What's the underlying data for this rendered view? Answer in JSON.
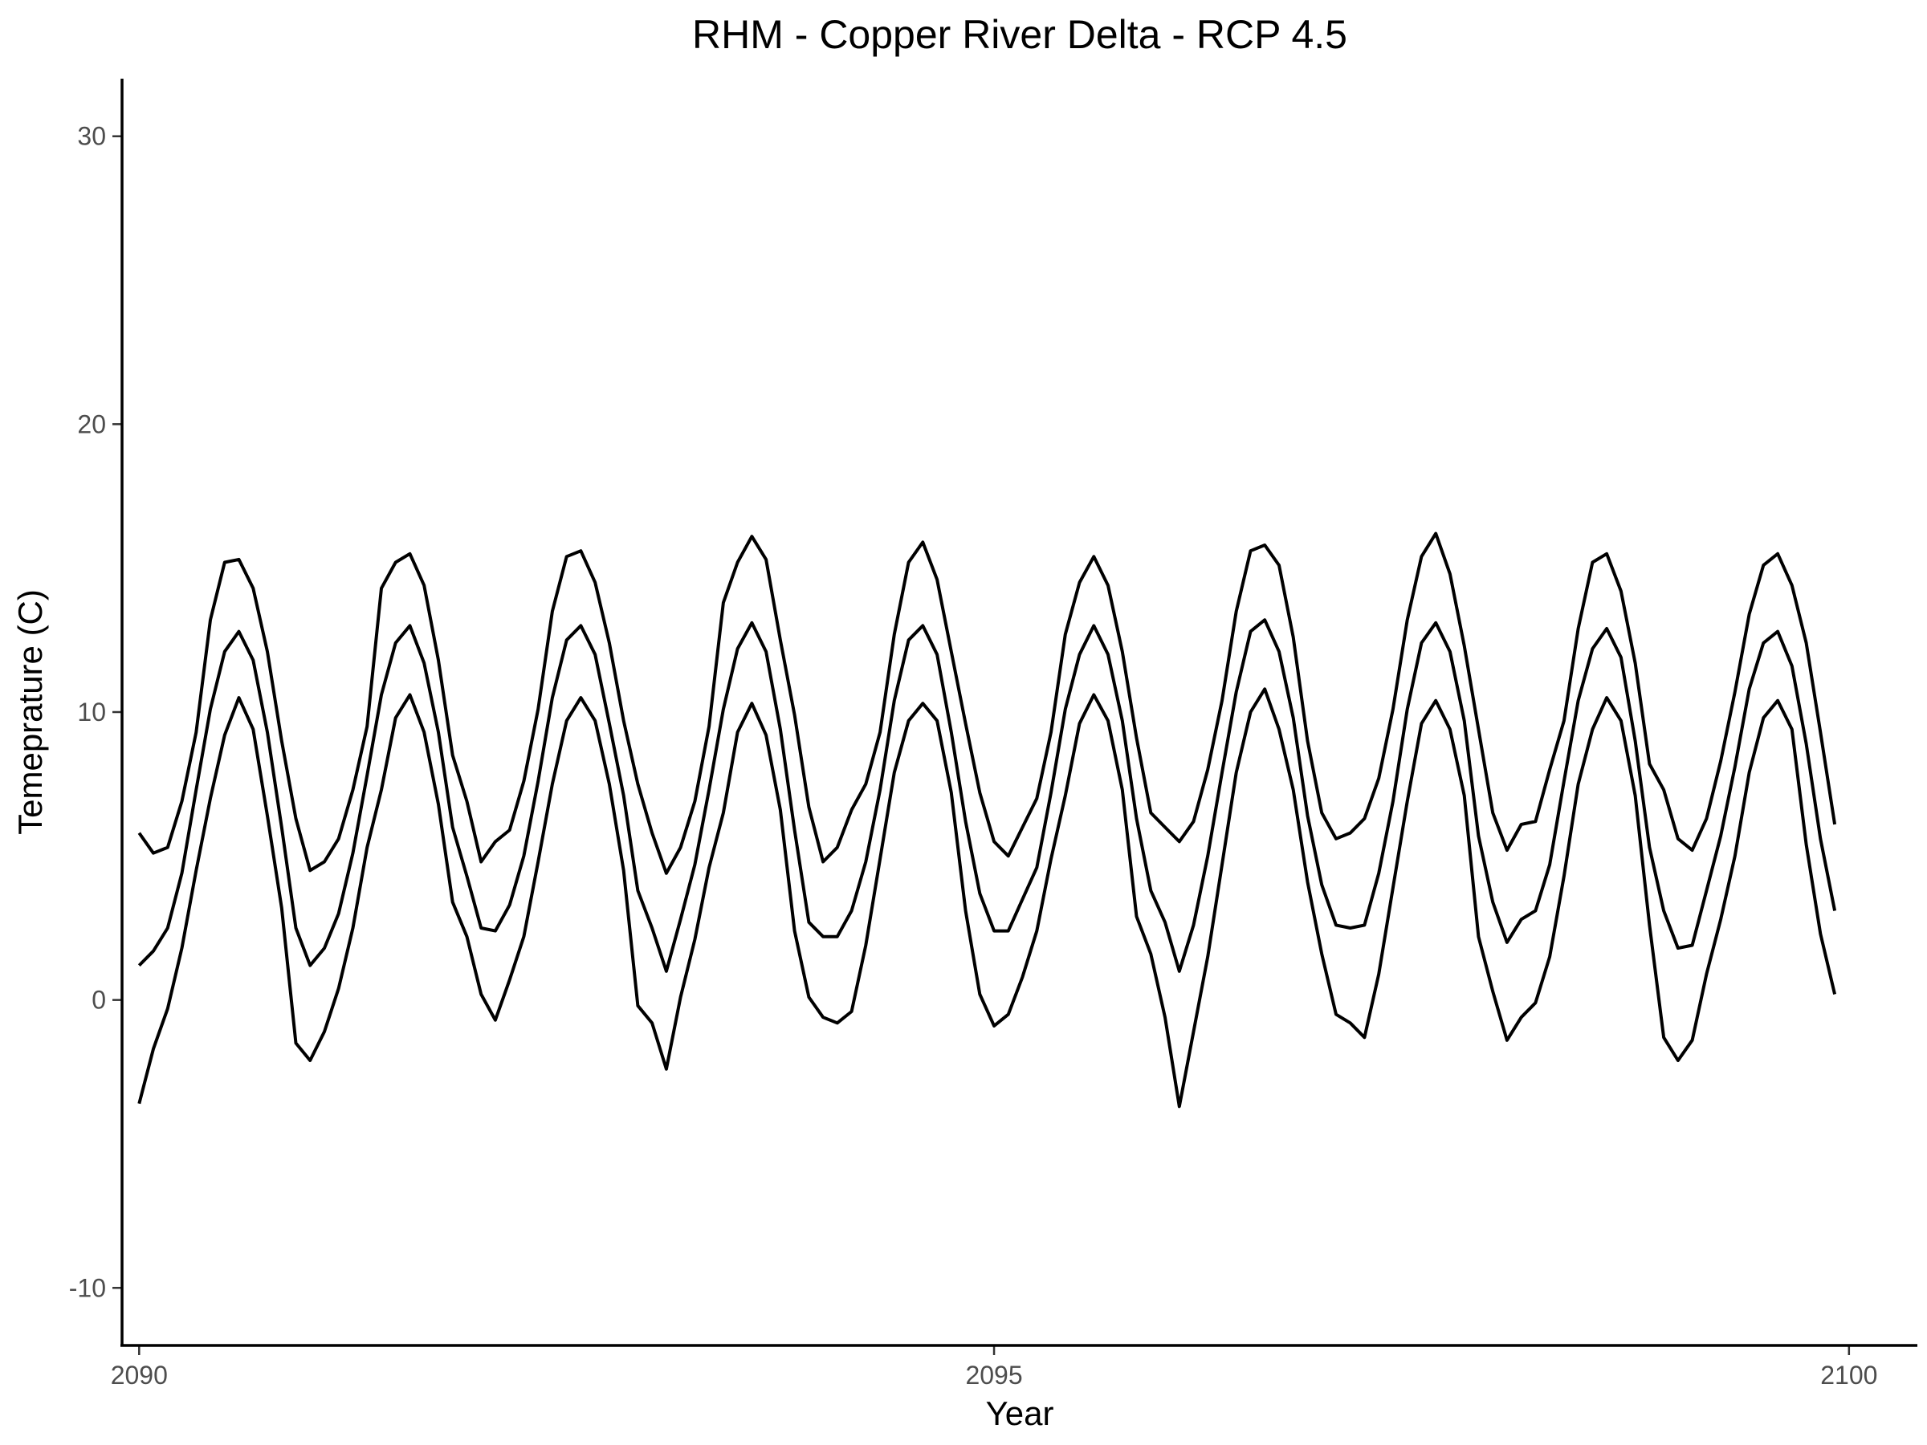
{
  "chart_data": {
    "type": "line",
    "title": "RHM - Copper River Delta - RCP 4.5",
    "xlabel": "Year",
    "ylabel": "Temeprature (C)",
    "xlim": [
      2089.9,
      2100.4
    ],
    "ylim": [
      -12,
      32
    ],
    "xticks": [
      2090,
      2095,
      2100
    ],
    "yticks": [
      -10,
      0,
      10,
      20,
      30
    ],
    "grid": false,
    "legend": "none",
    "line_color": "#000000",
    "x_start": 2090,
    "x_step": 0.083333,
    "series": [
      {
        "values": [
          5.8,
          5.1,
          5.3,
          6.9,
          9.3,
          13.2,
          15.2,
          15.3,
          14.3,
          12.1,
          9.0,
          6.3,
          4.5,
          4.8,
          5.6,
          7.3,
          9.5,
          14.3,
          15.2,
          15.5,
          14.4,
          11.8,
          8.5,
          6.9,
          4.8,
          5.5,
          5.9,
          7.6,
          10.1,
          13.5,
          15.4,
          15.6,
          14.5,
          12.4,
          9.7,
          7.5,
          5.8,
          4.4,
          5.3,
          6.9,
          9.5,
          13.8,
          15.2,
          16.1,
          15.3,
          12.5,
          9.9,
          6.7,
          4.8,
          5.3,
          6.6,
          7.5,
          9.3,
          12.7,
          15.2,
          15.9,
          14.6,
          12.1,
          9.6,
          7.2,
          5.5,
          5.0,
          6.0,
          7.0,
          9.3,
          12.7,
          14.5,
          15.4,
          14.4,
          12.1,
          9.1,
          6.5,
          6.0,
          5.5,
          6.2,
          8.0,
          10.4,
          13.5,
          15.6,
          15.8,
          15.1,
          12.6,
          9.0,
          6.5,
          5.6,
          5.8,
          6.3,
          7.7,
          10.1,
          13.2,
          15.4,
          16.2,
          14.8,
          12.3,
          9.4,
          6.5,
          5.2,
          6.1,
          6.2,
          8.0,
          9.7,
          12.9,
          15.2,
          15.5,
          14.2,
          11.7,
          8.2,
          7.3,
          5.6,
          5.2,
          6.3,
          8.3,
          10.7,
          13.4,
          15.1,
          15.5,
          14.4,
          12.4,
          9.3,
          6.1
        ]
      },
      {
        "values": [
          1.2,
          1.7,
          2.5,
          4.4,
          7.3,
          10.1,
          12.1,
          12.8,
          11.8,
          9.3,
          6.0,
          2.5,
          1.2,
          1.8,
          3.0,
          5.1,
          7.8,
          10.6,
          12.4,
          13.0,
          11.7,
          9.3,
          6.0,
          4.3,
          2.5,
          2.4,
          3.3,
          5.0,
          7.6,
          10.5,
          12.5,
          13.0,
          12.0,
          9.6,
          7.1,
          3.8,
          2.5,
          1.0,
          2.8,
          4.7,
          7.3,
          10.1,
          12.2,
          13.1,
          12.1,
          9.4,
          5.9,
          2.7,
          2.2,
          2.2,
          3.1,
          4.8,
          7.3,
          10.4,
          12.5,
          13.0,
          12.0,
          9.3,
          6.2,
          3.7,
          2.4,
          2.4,
          3.5,
          4.6,
          7.2,
          10.1,
          12.0,
          13.0,
          12.0,
          9.7,
          6.3,
          3.8,
          2.7,
          1.0,
          2.6,
          5.0,
          7.9,
          10.7,
          12.8,
          13.2,
          12.1,
          9.8,
          6.4,
          4.0,
          2.6,
          2.5,
          2.6,
          4.4,
          6.9,
          10.1,
          12.4,
          13.1,
          12.1,
          9.7,
          5.7,
          3.4,
          2.0,
          2.8,
          3.1,
          4.7,
          7.6,
          10.4,
          12.2,
          12.9,
          11.9,
          9.0,
          5.3,
          3.1,
          1.8,
          1.9,
          3.8,
          5.7,
          8.1,
          10.8,
          12.4,
          12.8,
          11.6,
          8.9,
          5.6,
          3.1
        ]
      },
      {
        "values": [
          -3.6,
          -1.7,
          -0.3,
          1.8,
          4.5,
          7.0,
          9.2,
          10.5,
          9.4,
          6.4,
          3.2,
          -1.5,
          -2.1,
          -1.1,
          0.4,
          2.5,
          5.3,
          7.3,
          9.8,
          10.6,
          9.3,
          6.8,
          3.4,
          2.2,
          0.2,
          -0.7,
          0.7,
          2.2,
          4.8,
          7.5,
          9.7,
          10.5,
          9.7,
          7.5,
          4.5,
          -0.2,
          -0.8,
          -2.4,
          0.1,
          2.1,
          4.6,
          6.5,
          9.3,
          10.3,
          9.2,
          6.6,
          2.4,
          0.1,
          -0.6,
          -0.8,
          -0.4,
          1.9,
          4.9,
          7.9,
          9.7,
          10.3,
          9.7,
          7.2,
          3.1,
          0.2,
          -0.9,
          -0.5,
          0.8,
          2.4,
          4.9,
          7.1,
          9.6,
          10.6,
          9.7,
          7.3,
          2.9,
          1.6,
          -0.6,
          -3.7,
          -1.1,
          1.5,
          4.7,
          7.9,
          10.0,
          10.8,
          9.4,
          7.3,
          4.1,
          1.6,
          -0.5,
          -0.8,
          -1.3,
          0.9,
          3.9,
          6.9,
          9.6,
          10.4,
          9.4,
          7.1,
          2.2,
          0.3,
          -1.4,
          -0.6,
          -0.1,
          1.5,
          4.3,
          7.5,
          9.4,
          10.5,
          9.7,
          7.1,
          2.6,
          -1.3,
          -2.1,
          -1.4,
          0.9,
          2.8,
          5.0,
          7.9,
          9.8,
          10.4,
          9.4,
          5.4,
          2.3,
          0.2
        ]
      }
    ]
  }
}
